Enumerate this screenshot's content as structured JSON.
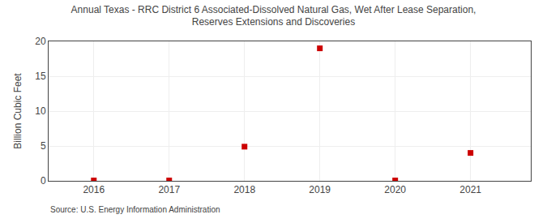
{
  "chart_data": {
    "type": "scatter",
    "title": "Annual Texas - RRC District 6 Associated-Dissolved Natural Gas, Wet After Lease Separation,\nReserves Extensions and Discoveries",
    "y_label": "Billion Cubic Feet",
    "annotations": [
      "Source: U.S. Energy Information Administration"
    ],
    "x": [
      2016,
      2017,
      2018,
      2019,
      2020,
      2021
    ],
    "values": [
      0.05,
      0.05,
      4.9,
      19.0,
      0.05,
      4.0
    ],
    "xlim": [
      2015.4,
      2021.8
    ],
    "xticks": [
      2016,
      2017,
      2018,
      2019,
      2020,
      2021
    ],
    "ylim": [
      0,
      20
    ],
    "yticks": [
      0,
      5,
      10,
      15,
      20
    ],
    "color": "#cc0000",
    "marker": "square",
    "grid": true
  }
}
